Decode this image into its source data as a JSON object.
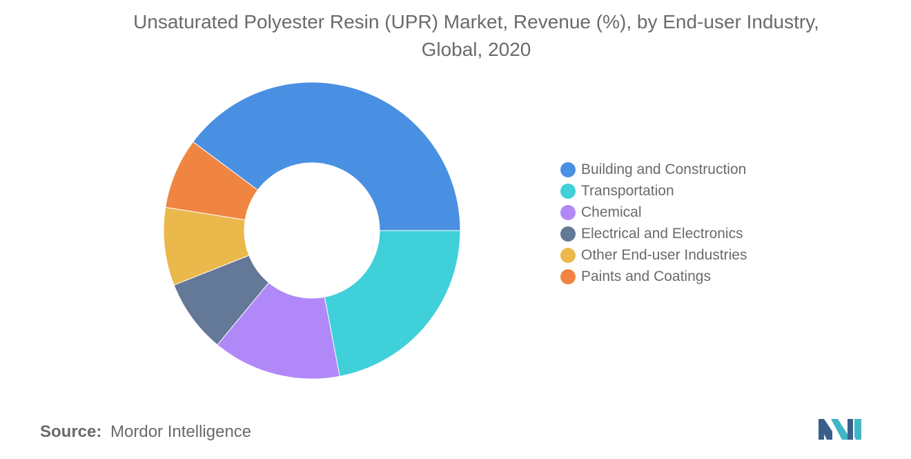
{
  "title_line1": "Unsaturated Polyester Resin (UPR) Market, Revenue (%), by End-user Industry,",
  "title_line2": "Global, 2020",
  "source_key": "Source:",
  "source_value": "Mordor Intelligence",
  "logo_icon": "mordor-intelligence-logo-icon",
  "chart_data": {
    "type": "pie",
    "style": "donut",
    "title": "Unsaturated Polyester Resin (UPR) Market, Revenue (%), by End-user Industry, Global, 2020",
    "legend_position": "right",
    "series": [
      {
        "name": "Building and Construction",
        "value": 39.8,
        "color": "#4a90e2"
      },
      {
        "name": "Transportation",
        "value": 22.0,
        "color": "#3fd0d9"
      },
      {
        "name": "Chemical",
        "value": 14.0,
        "color": "#b088f8"
      },
      {
        "name": "Electrical and Electronics",
        "value": 8.0,
        "color": "#647897"
      },
      {
        "name": "Other End-user Industries",
        "value": 8.5,
        "color": "#ebb84c"
      },
      {
        "name": "Paints and Coatings",
        "value": 7.7,
        "color": "#f08542"
      }
    ],
    "draw_order": [
      0,
      5,
      4,
      3,
      2,
      1
    ]
  }
}
